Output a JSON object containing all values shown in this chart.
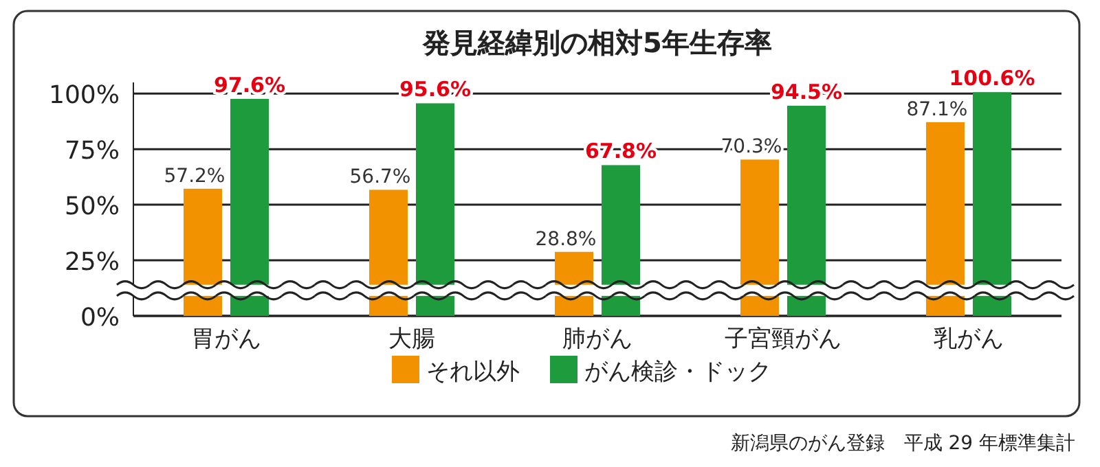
{
  "chart_data": {
    "type": "bar",
    "title": "発見経緯別の相対5年生存率",
    "categories": [
      "胃がん",
      "大腸",
      "肺がん",
      "子宮頸がん",
      "乳がん"
    ],
    "series": [
      {
        "name": "それ以外",
        "color": "#f39200",
        "values": [
          57.2,
          56.7,
          28.8,
          70.3,
          87.1
        ],
        "value_labels": [
          "57.2%",
          "56.7%",
          "28.8%",
          "70.3%",
          "87.1%"
        ]
      },
      {
        "name": "がん検診・ドック",
        "color": "#1e9b3c",
        "values": [
          97.6,
          95.6,
          67.8,
          94.5,
          100.6
        ],
        "value_labels": [
          "97.6%",
          "95.6%",
          "67.8%",
          "94.5%",
          "100.6%"
        ]
      }
    ],
    "ylim": [
      0,
      105
    ],
    "yticks": [
      {
        "value": 0,
        "label": "0%"
      },
      {
        "value": 25,
        "label": "25%"
      },
      {
        "value": 50,
        "label": "50%"
      },
      {
        "value": 75,
        "label": "75%"
      },
      {
        "value": 100,
        "label": "100%"
      }
    ],
    "grid": "y",
    "legend": "bottom",
    "bands": [
      {
        "axis": "y",
        "from": 9,
        "to": 14,
        "color": "#ffffff"
      }
    ],
    "annotations": [
      "新潟県のがん登録　平成 29 年標準集計"
    ]
  }
}
